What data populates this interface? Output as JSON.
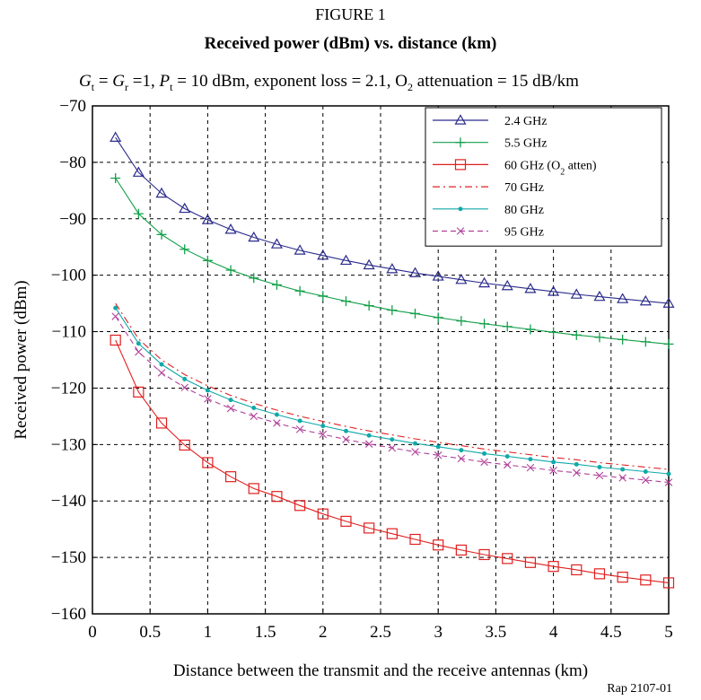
{
  "figure_label": "FIGURE 1",
  "footer": "Rap 2107-01",
  "chart_data": {
    "type": "line",
    "title": "Received power (dBm) vs. distance (km)",
    "subtitle_parts": [
      "G",
      "t",
      " = ",
      "G",
      "r",
      " =1, ",
      "P",
      "t",
      " = 10 dBm, exponent loss = 2.1, O",
      "2",
      " attenuation = 15 dB/km"
    ],
    "xlabel": "Distance between the transmit and the receive antennas (km)",
    "ylabel": "Received power (dBm)",
    "xlim": [
      0,
      5
    ],
    "ylim": [
      -160,
      -70
    ],
    "xticks": [
      0,
      0.5,
      1,
      1.5,
      2,
      2.5,
      3,
      3.5,
      4,
      4.5,
      5
    ],
    "xtick_labels": [
      "0",
      "0.5",
      "1",
      "1.5",
      "2",
      "2.5",
      "3",
      "3.5",
      "4",
      "4.5",
      "5"
    ],
    "yticks": [
      -160,
      -150,
      -140,
      -130,
      -120,
      -110,
      -100,
      -90,
      -80,
      -70
    ],
    "ytick_labels": [
      "−160",
      "−150",
      "−140",
      "−130",
      "−120",
      "−110",
      "−100",
      "−90",
      "−80",
      "−70"
    ],
    "grid": true,
    "legend_position": "top-right",
    "x": [
      0.2,
      0.4,
      0.6,
      0.8,
      1.0,
      1.2,
      1.4,
      1.6,
      1.8,
      2.0,
      2.2,
      2.4,
      2.6,
      2.8,
      3.0,
      3.2,
      3.4,
      3.6,
      3.8,
      4.0,
      4.2,
      4.4,
      4.6,
      4.8,
      5.0
    ],
    "series": [
      {
        "name": "2.4 GHz",
        "color": "#2b2b8c",
        "marker": "triangle",
        "dash": "solid",
        "values": [
          -75.6,
          -81.8,
          -85.5,
          -88.2,
          -90.2,
          -91.9,
          -93.3,
          -94.5,
          -95.6,
          -96.5,
          -97.4,
          -98.2,
          -98.9,
          -99.6,
          -100.2,
          -100.8,
          -101.4,
          -101.9,
          -102.4,
          -102.9,
          -103.4,
          -103.8,
          -104.2,
          -104.6,
          -105.0
        ]
      },
      {
        "name": "5.5 GHz",
        "color": "#14a04a",
        "marker": "plus",
        "dash": "solid",
        "values": [
          -82.8,
          -89.1,
          -92.8,
          -95.4,
          -97.4,
          -99.1,
          -100.5,
          -101.7,
          -102.8,
          -103.7,
          -104.6,
          -105.4,
          -106.2,
          -106.8,
          -107.5,
          -108.1,
          -108.6,
          -109.1,
          -109.6,
          -110.1,
          -110.6,
          -111.0,
          -111.4,
          -111.8,
          -112.2
        ]
      },
      {
        "name": "60 GHz (O",
        "name_sub": "2",
        "name_suffix": " atten)",
        "color": "#e02020",
        "marker": "square",
        "dash": "solid",
        "values": [
          -111.5,
          -120.7,
          -126.2,
          -130.1,
          -133.2,
          -135.7,
          -137.8,
          -139.2,
          -140.8,
          -142.3,
          -143.6,
          -144.8,
          -145.8,
          -146.8,
          -147.8,
          -148.7,
          -149.5,
          -150.2,
          -150.9,
          -151.6,
          -152.2,
          -152.9,
          -153.5,
          -154.0,
          -154.5
        ]
      },
      {
        "name": "70 GHz",
        "color": "#e02020",
        "marker": "none",
        "dash": "dashdot",
        "values": [
          -105.0,
          -111.3,
          -115.0,
          -117.6,
          -119.6,
          -121.3,
          -122.7,
          -123.9,
          -125.0,
          -125.9,
          -126.8,
          -127.6,
          -128.3,
          -129.0,
          -129.6,
          -130.2,
          -130.8,
          -131.3,
          -131.8,
          -132.3,
          -132.7,
          -133.2,
          -133.6,
          -134.0,
          -134.4
        ]
      },
      {
        "name": "80 GHz",
        "color": "#12a8a8",
        "marker": "dot",
        "dash": "solid",
        "values": [
          -105.8,
          -112.1,
          -115.8,
          -118.4,
          -120.4,
          -122.1,
          -123.5,
          -124.7,
          -125.8,
          -126.7,
          -127.6,
          -128.4,
          -129.1,
          -129.8,
          -130.4,
          -131.0,
          -131.6,
          -132.1,
          -132.6,
          -133.1,
          -133.5,
          -134.0,
          -134.4,
          -134.8,
          -135.2
        ]
      },
      {
        "name": "95 GHz",
        "color": "#b0409a",
        "marker": "x",
        "dash": "dashed",
        "values": [
          -107.3,
          -113.6,
          -117.3,
          -119.9,
          -121.9,
          -123.6,
          -125.0,
          -126.2,
          -127.3,
          -128.2,
          -129.1,
          -129.9,
          -130.6,
          -131.3,
          -131.9,
          -132.5,
          -133.1,
          -133.6,
          -134.1,
          -134.6,
          -135.0,
          -135.5,
          -135.9,
          -136.3,
          -136.7
        ]
      }
    ]
  }
}
